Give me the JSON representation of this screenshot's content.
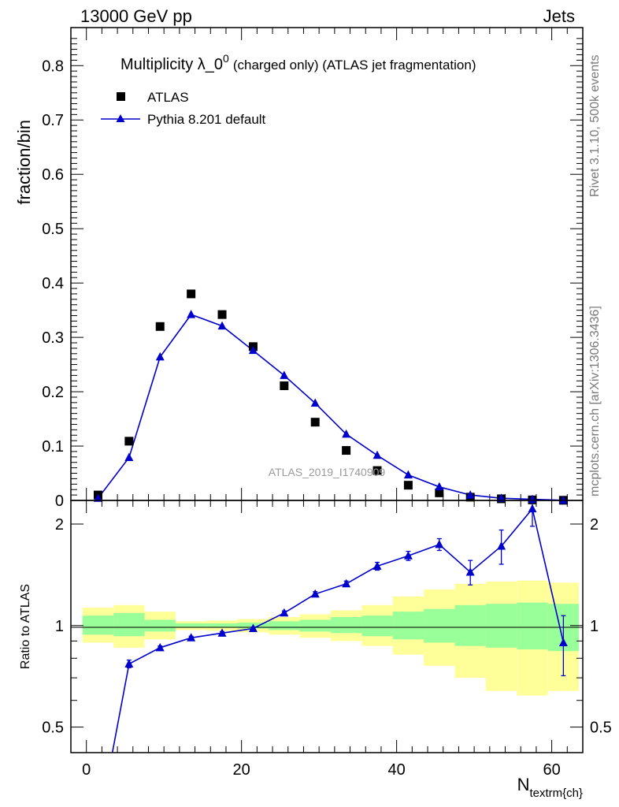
{
  "header": {
    "left": "13000 GeV pp",
    "right": "Jets"
  },
  "side_labels": {
    "rivet": "Rivet 3.1.10,  500k events",
    "mcplots": "mcplots.cern.ch [arXiv:1306.3436]"
  },
  "watermark": "ATLAS_2019_I1740909",
  "colors": {
    "mc": "#0000cc",
    "data": "#000000",
    "band_inner": "#99ff99",
    "band_outer": "#ffff99"
  },
  "chart_data": [
    {
      "type": "scatter",
      "title_main": "Multiplicity λ_0",
      "title_sup": "0",
      "title_sub": "(charged only) (ATLAS jet fragmentation)",
      "ylabel": "fraction/bin",
      "xlim": [
        -2,
        64
      ],
      "ylim": [
        0,
        0.87
      ],
      "yticks": [
        0,
        0.1,
        0.2,
        0.3,
        0.4,
        0.5,
        0.6,
        0.7,
        0.8
      ],
      "ytick_labels": [
        "0",
        "0.1",
        "0.2",
        "0.3",
        "0.4",
        "0.5",
        "0.6",
        "0.7",
        "0.8"
      ],
      "legend": {
        "placement": "top-left",
        "entries": [
          "ATLAS",
          "Pythia 8.201 default"
        ]
      },
      "x": [
        1.5,
        5.5,
        9.5,
        13.5,
        17.5,
        21.5,
        25.5,
        29.5,
        33.5,
        37.5,
        41.5,
        45.5,
        49.5,
        53.5,
        57.5,
        61.5
      ],
      "series": [
        {
          "name": "ATLAS",
          "marker": "square",
          "values": [
            0.01,
            0.109,
            0.32,
            0.38,
            0.342,
            0.283,
            0.211,
            0.144,
            0.092,
            0.055,
            0.028,
            0.014,
            0.006,
            0.003,
            0.001,
            0.0003
          ]
        },
        {
          "name": "Pythia 8.201 default",
          "marker": "triangle",
          "line": true,
          "values": [
            0.004,
            0.079,
            0.264,
            0.342,
            0.321,
            0.276,
            0.23,
            0.179,
            0.122,
            0.083,
            0.047,
            0.025,
            0.01,
            0.004,
            0.002,
            0.0003
          ]
        }
      ]
    },
    {
      "type": "line",
      "ylabel": "Ratio to ATLAS",
      "xlabel_main": "N",
      "xlabel_sub": "textrm{ch}",
      "xlim": [
        -2,
        64
      ],
      "ylim": [
        0.42,
        2.35
      ],
      "log_y": true,
      "yticks": [
        0.5,
        1,
        2
      ],
      "ytick_labels": [
        "0.5",
        "1",
        "2"
      ],
      "xticks": [
        0,
        20,
        40,
        60
      ],
      "xtick_labels": [
        "0",
        "20",
        "40",
        "60"
      ],
      "bin_edges": [
        -0.5,
        3.5,
        7.5,
        11.5,
        15.5,
        19.5,
        23.5,
        27.5,
        31.5,
        35.5,
        39.5,
        43.5,
        47.5,
        51.5,
        55.5,
        59.5,
        63.5
      ],
      "band_inner": [
        [
          0.94,
          1.07
        ],
        [
          0.93,
          1.09
        ],
        [
          0.96,
          1.04
        ],
        [
          0.985,
          1.015
        ],
        [
          0.985,
          1.015
        ],
        [
          0.98,
          1.02
        ],
        [
          0.97,
          1.03
        ],
        [
          0.96,
          1.04
        ],
        [
          0.95,
          1.06
        ],
        [
          0.93,
          1.07
        ],
        [
          0.91,
          1.1
        ],
        [
          0.89,
          1.12
        ],
        [
          0.87,
          1.15
        ],
        [
          0.86,
          1.16
        ],
        [
          0.85,
          1.17
        ],
        [
          0.84,
          1.16
        ]
      ],
      "band_outer": [
        [
          0.89,
          1.13
        ],
        [
          0.86,
          1.15
        ],
        [
          0.91,
          1.1
        ],
        [
          0.97,
          1.03
        ],
        [
          0.965,
          1.035
        ],
        [
          0.955,
          1.045
        ],
        [
          0.94,
          1.06
        ],
        [
          0.92,
          1.08
        ],
        [
          0.9,
          1.11
        ],
        [
          0.87,
          1.15
        ],
        [
          0.82,
          1.22
        ],
        [
          0.76,
          1.28
        ],
        [
          0.7,
          1.33
        ],
        [
          0.64,
          1.35
        ],
        [
          0.62,
          1.36
        ],
        [
          0.64,
          1.34
        ]
      ],
      "series": [
        {
          "name": "Pythia 8.201 default",
          "marker": "triangle",
          "x": [
            1.5,
            5.5,
            9.5,
            13.5,
            17.5,
            21.5,
            25.5,
            29.5,
            33.5,
            37.5,
            41.5,
            45.5,
            49.5,
            53.5,
            57.5,
            61.5
          ],
          "values": [
            0.25,
            0.77,
            0.86,
            0.92,
            0.95,
            0.98,
            1.09,
            1.24,
            1.33,
            1.5,
            1.61,
            1.74,
            1.44,
            1.72,
            2.22,
            0.89
          ],
          "err": [
            0,
            0.02,
            0.01,
            0.01,
            0.01,
            0.01,
            0.015,
            0.02,
            0.025,
            0.04,
            0.05,
            0.07,
            0.12,
            0.2,
            0.25,
            0.18
          ]
        }
      ]
    }
  ]
}
